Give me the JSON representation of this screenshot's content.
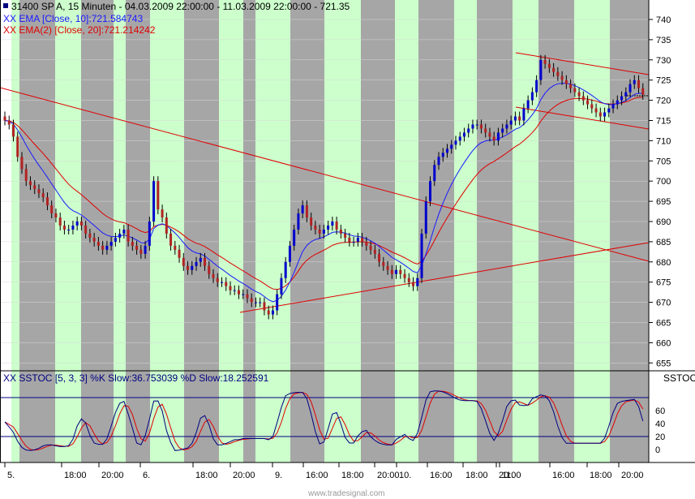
{
  "header": {
    "line1": "31400  SP A, 15 Minuten - 04.03.2009 22:00:00 - 11.03.2009 22:00:00 - 721.35",
    "line2": "XX EMA [Close, 10]:721.584743",
    "line3": "XX EMA(2) [Close, 20]:721.214242"
  },
  "stoch": {
    "label": "XX SSTOC [5, 3, 3] %K Slow:36.753039 %D Slow:18.252591",
    "tag": "SSTOC",
    "ticks": [
      "60",
      "40",
      "20",
      "0"
    ]
  },
  "watermark": "www.tradesignal.com",
  "colors": {
    "up": "#0000cc",
    "down": "#b22222",
    "ema10": "#1a1aff",
    "ema20": "#e00000",
    "trend": "#e00000",
    "band_green": "#ccffcc",
    "band_gray": "#a6a6a6",
    "stoch_k": "#000080",
    "stoch_d": "#e00000"
  },
  "chart_data": {
    "type": "candlestick",
    "xaxis_labels": [
      "5.",
      "18:00",
      "20:00",
      "6.",
      "18:00",
      "20:00",
      "9.",
      "16:00",
      "18:00",
      "20:00",
      "10.",
      "16:00",
      "18:00",
      "20:00",
      "11.",
      "16:00",
      "18:00",
      "20:00"
    ],
    "yaxis_ticks": [
      740,
      735,
      730,
      725,
      720,
      715,
      710,
      705,
      700,
      695,
      690,
      685,
      680,
      675,
      670,
      665,
      660,
      655
    ],
    "ylim": [
      652,
      744
    ],
    "closes": [
      715,
      714,
      711,
      706,
      703,
      700,
      699,
      698,
      697,
      696,
      694,
      692,
      691,
      689,
      688,
      688,
      689,
      690,
      689,
      687,
      686,
      685,
      684,
      683,
      684,
      685,
      686,
      687,
      688,
      685,
      684,
      683,
      682,
      684,
      690,
      700,
      693,
      691,
      687,
      684,
      683,
      681,
      679,
      678,
      679,
      680,
      681,
      679,
      677,
      676,
      675,
      675,
      674,
      673,
      673,
      672,
      672,
      671,
      670,
      670,
      670,
      668,
      667,
      668,
      672,
      676,
      680,
      684,
      688,
      692,
      694,
      691,
      689,
      688,
      687,
      688,
      689,
      690,
      688,
      687,
      686,
      685,
      685,
      686,
      685,
      684,
      683,
      682,
      680,
      679,
      678,
      677,
      678,
      677,
      676,
      675,
      674,
      676,
      687,
      695,
      700,
      704,
      706,
      707,
      708,
      709,
      710,
      711,
      712,
      713,
      714,
      714,
      713,
      712,
      711,
      710,
      712,
      713,
      714,
      715,
      716,
      715,
      718,
      720,
      722,
      725,
      730,
      729,
      728,
      727,
      726,
      725,
      724,
      723,
      722,
      721,
      720,
      719,
      718,
      717,
      716,
      717,
      718,
      719,
      720,
      721,
      722,
      724,
      725,
      723,
      721.35
    ]
  }
}
